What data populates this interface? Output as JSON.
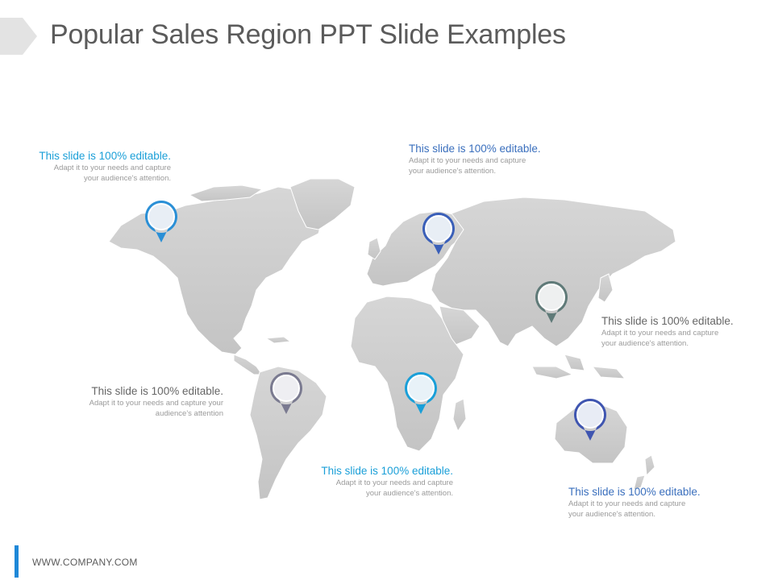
{
  "slide": {
    "title": "Popular Sales Region PPT Slide Examples",
    "footer": "WWW.COMPANY.COM",
    "colors": {
      "accent_blue": "#1e88d8",
      "accent_cyan": "#1a9fd8",
      "accent_dark_blue": "#3a5fb8",
      "heading_gray": "#666666",
      "map_gray": "#cfcfcf"
    }
  },
  "callouts": [
    {
      "id": "north-america",
      "heading": "This slide is 100% editable.",
      "body_line1": "Adapt it to your needs and capture",
      "body_line2": "your audience's attention.",
      "color": "#1a9fd8"
    },
    {
      "id": "europe",
      "heading": "This slide is 100% editable.",
      "body_line1": "Adapt it to your needs and capture",
      "body_line2": "your audience's attention.",
      "color": "#3a6fbd"
    },
    {
      "id": "asia",
      "heading": "This slide is 100% editable.",
      "body_line1": "Adapt it to your needs and capture",
      "body_line2": "your audience's attention.",
      "color": "#666666"
    },
    {
      "id": "south-america",
      "heading": "This slide is 100% editable.",
      "body_line1": "Adapt it to your needs and capture your",
      "body_line2": "audience's attention",
      "color": "#666666"
    },
    {
      "id": "africa",
      "heading": "This slide is 100% editable.",
      "body_line1": "Adapt it to your needs and capture",
      "body_line2": "your audience's attention.",
      "color": "#1a9fd8"
    },
    {
      "id": "australia",
      "heading": "This slide is 100% editable.",
      "body_line1": "Adapt it to your needs and capture",
      "body_line2": "your audience's attention.",
      "color": "#3a6fbd"
    }
  ],
  "pins": [
    {
      "region": "north-america",
      "color": "#2a8fd6"
    },
    {
      "region": "europe",
      "color": "#3a5fb8"
    },
    {
      "region": "asia",
      "color": "#5f7a78"
    },
    {
      "region": "south-america",
      "color": "#7a7a90"
    },
    {
      "region": "africa",
      "color": "#1a9fd8"
    },
    {
      "region": "australia",
      "color": "#3f55b0"
    }
  ]
}
